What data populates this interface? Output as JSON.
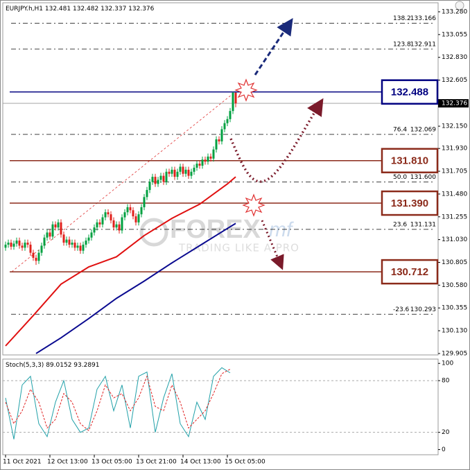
{
  "chart_data": {
    "type": "candlestick",
    "symbol": "EURJPY.h,H1",
    "candles": {
      "open": [
        130.95,
        130.98,
        131.0,
        130.96,
        130.99,
        131.02,
        130.97,
        130.95,
        131.0,
        130.98,
        130.9,
        130.85,
        130.82,
        130.9,
        130.97,
        131.05,
        131.1,
        131.06,
        131.18,
        131.15,
        131.2,
        131.08,
        131.0,
        131.03,
        130.98,
        131.0,
        130.95,
        130.97,
        130.92,
        130.98,
        131.02,
        131.05,
        131.1,
        131.15,
        131.2,
        131.18,
        131.25,
        131.3,
        131.28,
        131.22,
        131.15,
        131.18,
        131.12,
        131.25,
        131.3,
        131.35,
        131.32,
        131.26,
        131.2,
        131.28,
        131.35,
        131.45,
        131.52,
        131.6,
        131.65,
        131.58,
        131.62,
        131.66,
        131.6,
        131.7,
        131.68,
        131.72,
        131.65,
        131.7,
        131.75,
        131.68,
        131.72,
        131.66,
        131.7,
        131.74,
        131.78,
        131.76,
        131.82,
        131.8,
        131.85,
        131.83,
        131.92,
        132.02,
        132.0,
        132.12,
        132.18,
        132.22,
        132.3,
        132.481
      ],
      "high": [
        131.01,
        131.03,
        131.03,
        131.02,
        131.05,
        131.05,
        131.0,
        131.03,
        131.03,
        131.01,
        130.93,
        130.88,
        130.93,
        131.0,
        131.08,
        131.13,
        131.13,
        131.21,
        131.21,
        131.23,
        131.23,
        131.11,
        131.06,
        131.06,
        131.03,
        131.03,
        131.0,
        131.0,
        131.01,
        131.05,
        131.08,
        131.13,
        131.18,
        131.23,
        131.23,
        131.28,
        131.33,
        131.33,
        131.31,
        131.25,
        131.21,
        131.21,
        131.28,
        131.33,
        131.38,
        131.38,
        131.35,
        131.29,
        131.31,
        131.38,
        131.48,
        131.55,
        131.63,
        131.68,
        131.68,
        131.65,
        131.69,
        131.69,
        131.73,
        131.73,
        131.75,
        131.75,
        131.73,
        131.78,
        131.78,
        131.75,
        131.75,
        131.73,
        131.77,
        131.81,
        131.81,
        131.85,
        131.85,
        131.88,
        131.88,
        131.95,
        132.05,
        132.05,
        132.15,
        132.21,
        132.25,
        132.33,
        132.488,
        132.482
      ],
      "low": [
        130.92,
        130.95,
        130.93,
        130.93,
        130.96,
        130.94,
        130.92,
        130.92,
        130.95,
        130.87,
        130.82,
        130.78,
        130.79,
        130.87,
        130.94,
        131.02,
        131.03,
        131.03,
        131.12,
        131.12,
        131.05,
        130.97,
        130.97,
        130.95,
        130.95,
        130.92,
        130.92,
        130.89,
        130.89,
        130.95,
        130.99,
        131.02,
        131.07,
        131.12,
        131.15,
        131.15,
        131.22,
        131.25,
        131.19,
        131.12,
        131.12,
        131.09,
        131.09,
        131.22,
        131.27,
        131.29,
        131.23,
        131.17,
        131.17,
        131.25,
        131.32,
        131.42,
        131.49,
        131.57,
        131.55,
        131.55,
        131.59,
        131.57,
        131.57,
        131.65,
        131.65,
        131.62,
        131.62,
        131.67,
        131.65,
        131.65,
        131.63,
        131.63,
        131.67,
        131.71,
        131.73,
        131.73,
        131.77,
        131.77,
        131.8,
        131.8,
        131.89,
        131.97,
        131.97,
        132.09,
        132.15,
        132.19,
        132.27,
        132.337
      ],
      "close": [
        130.98,
        131.0,
        130.96,
        130.99,
        131.02,
        130.97,
        130.95,
        131.0,
        130.98,
        130.9,
        130.85,
        130.82,
        130.9,
        130.97,
        131.05,
        131.1,
        131.06,
        131.18,
        131.15,
        131.2,
        131.08,
        131.0,
        131.03,
        130.98,
        131.0,
        130.95,
        130.97,
        130.92,
        130.98,
        131.02,
        131.05,
        131.1,
        131.15,
        131.2,
        131.18,
        131.25,
        131.3,
        131.28,
        131.22,
        131.15,
        131.18,
        131.12,
        131.25,
        131.3,
        131.35,
        131.32,
        131.26,
        131.2,
        131.28,
        131.35,
        131.45,
        131.52,
        131.6,
        131.65,
        131.58,
        131.62,
        131.66,
        131.6,
        131.7,
        131.68,
        131.72,
        131.65,
        131.7,
        131.75,
        131.68,
        131.72,
        131.66,
        131.7,
        131.74,
        131.78,
        131.76,
        131.82,
        131.8,
        131.85,
        131.83,
        131.92,
        132.02,
        132.0,
        132.12,
        132.18,
        132.22,
        132.3,
        132.481,
        132.376
      ],
      "up_color": "#00a040",
      "down_color": "#e0201b"
    },
    "ylim": [
      129.891,
      133.369
    ],
    "yticks": [
      {
        "value": 133.28,
        "label": "133.280"
      },
      133.055,
      {
        "value": 132.83,
        "label": "132.830"
      },
      132.605,
      {
        "value": 132.15,
        "label": "132.150"
      },
      {
        "value": 131.93,
        "label": "131.930"
      },
      131.705,
      {
        "value": 131.48,
        "label": "131.480"
      },
      131.255,
      {
        "value": 131.03,
        "label": "131.030"
      },
      130.805,
      {
        "value": 130.58,
        "label": "130.580"
      },
      130.355,
      {
        "value": 130.13,
        "label": "130.130"
      },
      129.905
    ],
    "x_labels": [
      {
        "index": 0,
        "label": "11 Oct 2021"
      },
      {
        "index": 16,
        "label": "12 Oct 13:00"
      },
      {
        "index": 32,
        "label": "13 Oct 05:00"
      },
      {
        "index": 48,
        "label": "13 Oct 21:00"
      },
      {
        "index": 64,
        "label": "14 Oct 13:00"
      },
      {
        "index": 80,
        "label": "15 Oct 05:00"
      }
    ],
    "ma_lines": [
      {
        "color": "#e01010",
        "x": [
          0,
          10,
          20,
          30,
          40,
          50,
          60,
          70,
          80,
          83
        ],
        "values": [
          129.98,
          130.28,
          130.59,
          130.76,
          130.86,
          131.07,
          131.24,
          131.38,
          131.58,
          131.65
        ]
      },
      {
        "color": "#0a0a90",
        "x": [
          11,
          20,
          30,
          40,
          50,
          60,
          70,
          80,
          83
        ],
        "values": [
          129.905,
          130.06,
          130.25,
          130.45,
          130.62,
          130.8,
          130.97,
          131.14,
          131.19
        ]
      }
    ],
    "levels": [
      {
        "value": 132.488,
        "color": "#000080"
      },
      {
        "value": 131.81,
        "label": "131.810",
        "color": "#8b2a1a"
      },
      {
        "value": 131.39,
        "label": "131.390",
        "color": "#8b2a1a"
      },
      {
        "value": 130.712,
        "color": "#8b2a1a"
      }
    ],
    "fib_levels": [
      {
        "level": "138.2",
        "value": 133.166
      },
      {
        "level": "123.8",
        "value": 132.911
      },
      {
        "level": "76.4",
        "value": 132.069
      },
      {
        "level": "50.0",
        "value": 131.6,
        "label": "131.600"
      },
      {
        "level": "23.6",
        "value": 131.131
      },
      {
        "level": "-23.6",
        "value": 130.293
      }
    ],
    "watermark": {
      "brand": "FOREX",
      "suffix": "mf",
      "tagline": "TRADING LIKE A PRO"
    },
    "stochastic": {
      "title": "Stoch(5,3,3)",
      "ylim": [
        -6,
        105
      ],
      "yticks": [
        100,
        80,
        20,
        0
      ],
      "x": [
        0,
        3,
        6,
        9,
        12,
        15,
        18,
        21,
        24,
        27,
        30,
        33,
        36,
        39,
        42,
        45,
        48,
        51,
        54,
        57,
        60,
        63,
        66,
        69,
        72,
        75,
        78,
        81
      ],
      "main": [
        60,
        12,
        75,
        85,
        30,
        15,
        55,
        80,
        35,
        20,
        25,
        70,
        85,
        45,
        75,
        25,
        85,
        90,
        20,
        60,
        88,
        30,
        15,
        55,
        35,
        85,
        95,
        89.0152
      ],
      "signal": [
        55,
        30,
        45,
        70,
        55,
        25,
        35,
        65,
        55,
        30,
        22,
        45,
        75,
        60,
        65,
        45,
        60,
        85,
        50,
        45,
        75,
        55,
        25,
        35,
        45,
        65,
        88,
        93.2891
      ],
      "main_color": "#20a0a8",
      "signal_color": "#e02020"
    }
  }
}
